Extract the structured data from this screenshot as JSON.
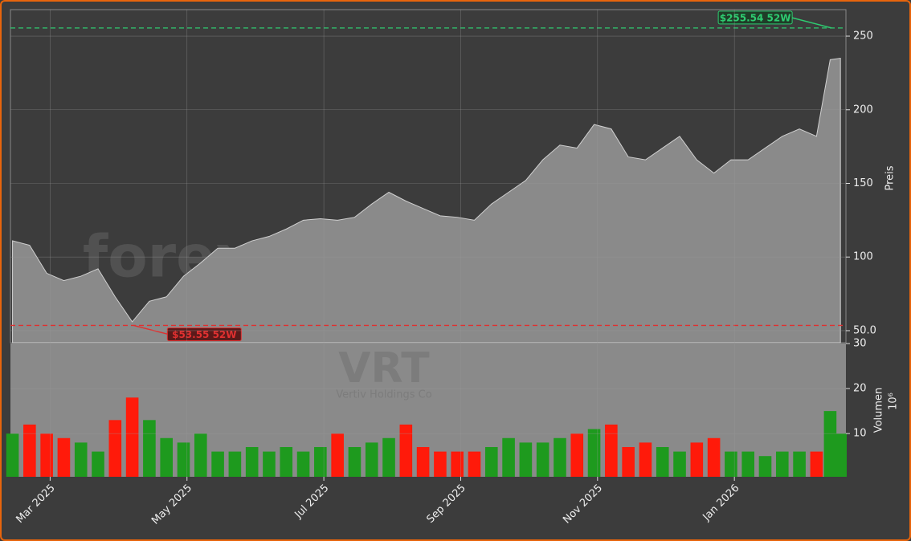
{
  "chart_data": [
    {
      "type": "area",
      "color": "#8a8a8a",
      "line_color": "#d0d0d0",
      "watermark": "forexsignale.trade",
      "ylabel": "Preis",
      "x": [
        0.45,
        0.7,
        0.95,
        1.2,
        1.45,
        1.7,
        1.95,
        2.2,
        2.45,
        2.7,
        2.95,
        3.2,
        3.45,
        3.7,
        3.95,
        4.2,
        4.45,
        4.7,
        4.95,
        5.2,
        5.45,
        5.7,
        5.95,
        6.2,
        6.45,
        6.7,
        6.95,
        7.2,
        7.45,
        7.7,
        7.95,
        8.2,
        8.45,
        8.7,
        8.95,
        9.2,
        9.45,
        9.7,
        9.95,
        10.2,
        10.45,
        10.7,
        10.95,
        11.2,
        11.45,
        11.7,
        11.95,
        12.2,
        12.4,
        12.55
      ],
      "values": [
        111,
        108,
        89,
        84,
        87,
        92,
        73,
        56,
        70,
        73,
        87,
        96,
        106,
        106,
        111,
        114,
        119,
        125,
        126,
        125,
        127,
        136,
        144,
        138,
        133,
        128,
        127,
        125,
        136,
        144,
        152,
        166,
        176,
        174,
        190,
        187,
        168,
        166,
        174,
        182,
        166,
        157,
        166,
        166,
        174,
        182,
        187,
        182,
        234,
        235
      ],
      "xlim": [
        0.42,
        12.63
      ],
      "ylim": [
        41.8,
        268
      ],
      "yticks": [
        {
          "value": 50,
          "label": "50.0"
        },
        100,
        150,
        200,
        250
      ],
      "grid": true,
      "annotations": [
        {
          "text": "$255.54 52W",
          "value": 255.54,
          "x": 12.42,
          "color": "#2ecc71"
        },
        {
          "text": "$53.55 52W",
          "value": 53.55,
          "x": 2.22,
          "color": "#e03030"
        }
      ]
    },
    {
      "type": "bar",
      "up_color": "#1e9a1e",
      "down_color": "#ff1a0a",
      "background": "#8a8a8a",
      "watermark": "VRT",
      "watermark_sub": "Vertiv Holdings Co",
      "ylabel": "Volumen",
      "ylabel_unit": "10⁶",
      "x": [
        0.45,
        0.7,
        0.95,
        1.2,
        1.45,
        1.7,
        1.95,
        2.2,
        2.45,
        2.7,
        2.95,
        3.2,
        3.45,
        3.7,
        3.95,
        4.2,
        4.45,
        4.7,
        4.95,
        5.2,
        5.45,
        5.7,
        5.95,
        6.2,
        6.45,
        6.7,
        6.95,
        7.2,
        7.45,
        7.7,
        7.95,
        8.2,
        8.45,
        8.7,
        8.95,
        9.2,
        9.45,
        9.7,
        9.95,
        10.2,
        10.45,
        10.7,
        10.95,
        11.2,
        11.45,
        11.7,
        11.95,
        12.2,
        12.4,
        12.55
      ],
      "values": [
        10,
        12,
        10,
        9,
        8,
        6,
        13,
        18,
        13,
        9,
        8,
        10,
        6,
        6,
        7,
        6,
        7,
        6,
        7,
        10,
        7,
        8,
        9,
        12,
        7,
        6,
        6,
        6,
        7,
        9,
        8,
        8,
        9,
        10,
        11,
        12,
        7,
        8,
        7,
        6,
        8,
        9,
        6,
        6,
        5,
        6,
        6,
        6,
        15,
        10
      ],
      "xlim": [
        0.42,
        12.63
      ],
      "ylim": [
        0.4,
        30
      ],
      "yticks": [
        10,
        20,
        30
      ],
      "grid": true,
      "xticks": [
        {
          "value": 1,
          "label": "Mar 2025"
        },
        {
          "value": 3,
          "label": "May 2025"
        },
        {
          "value": 5,
          "label": "Jul 2025"
        },
        {
          "value": 7,
          "label": "Sep 2025"
        },
        {
          "value": 9,
          "label": "Nov 2025"
        },
        {
          "value": 11,
          "label": "Jan 2026"
        }
      ]
    }
  ]
}
